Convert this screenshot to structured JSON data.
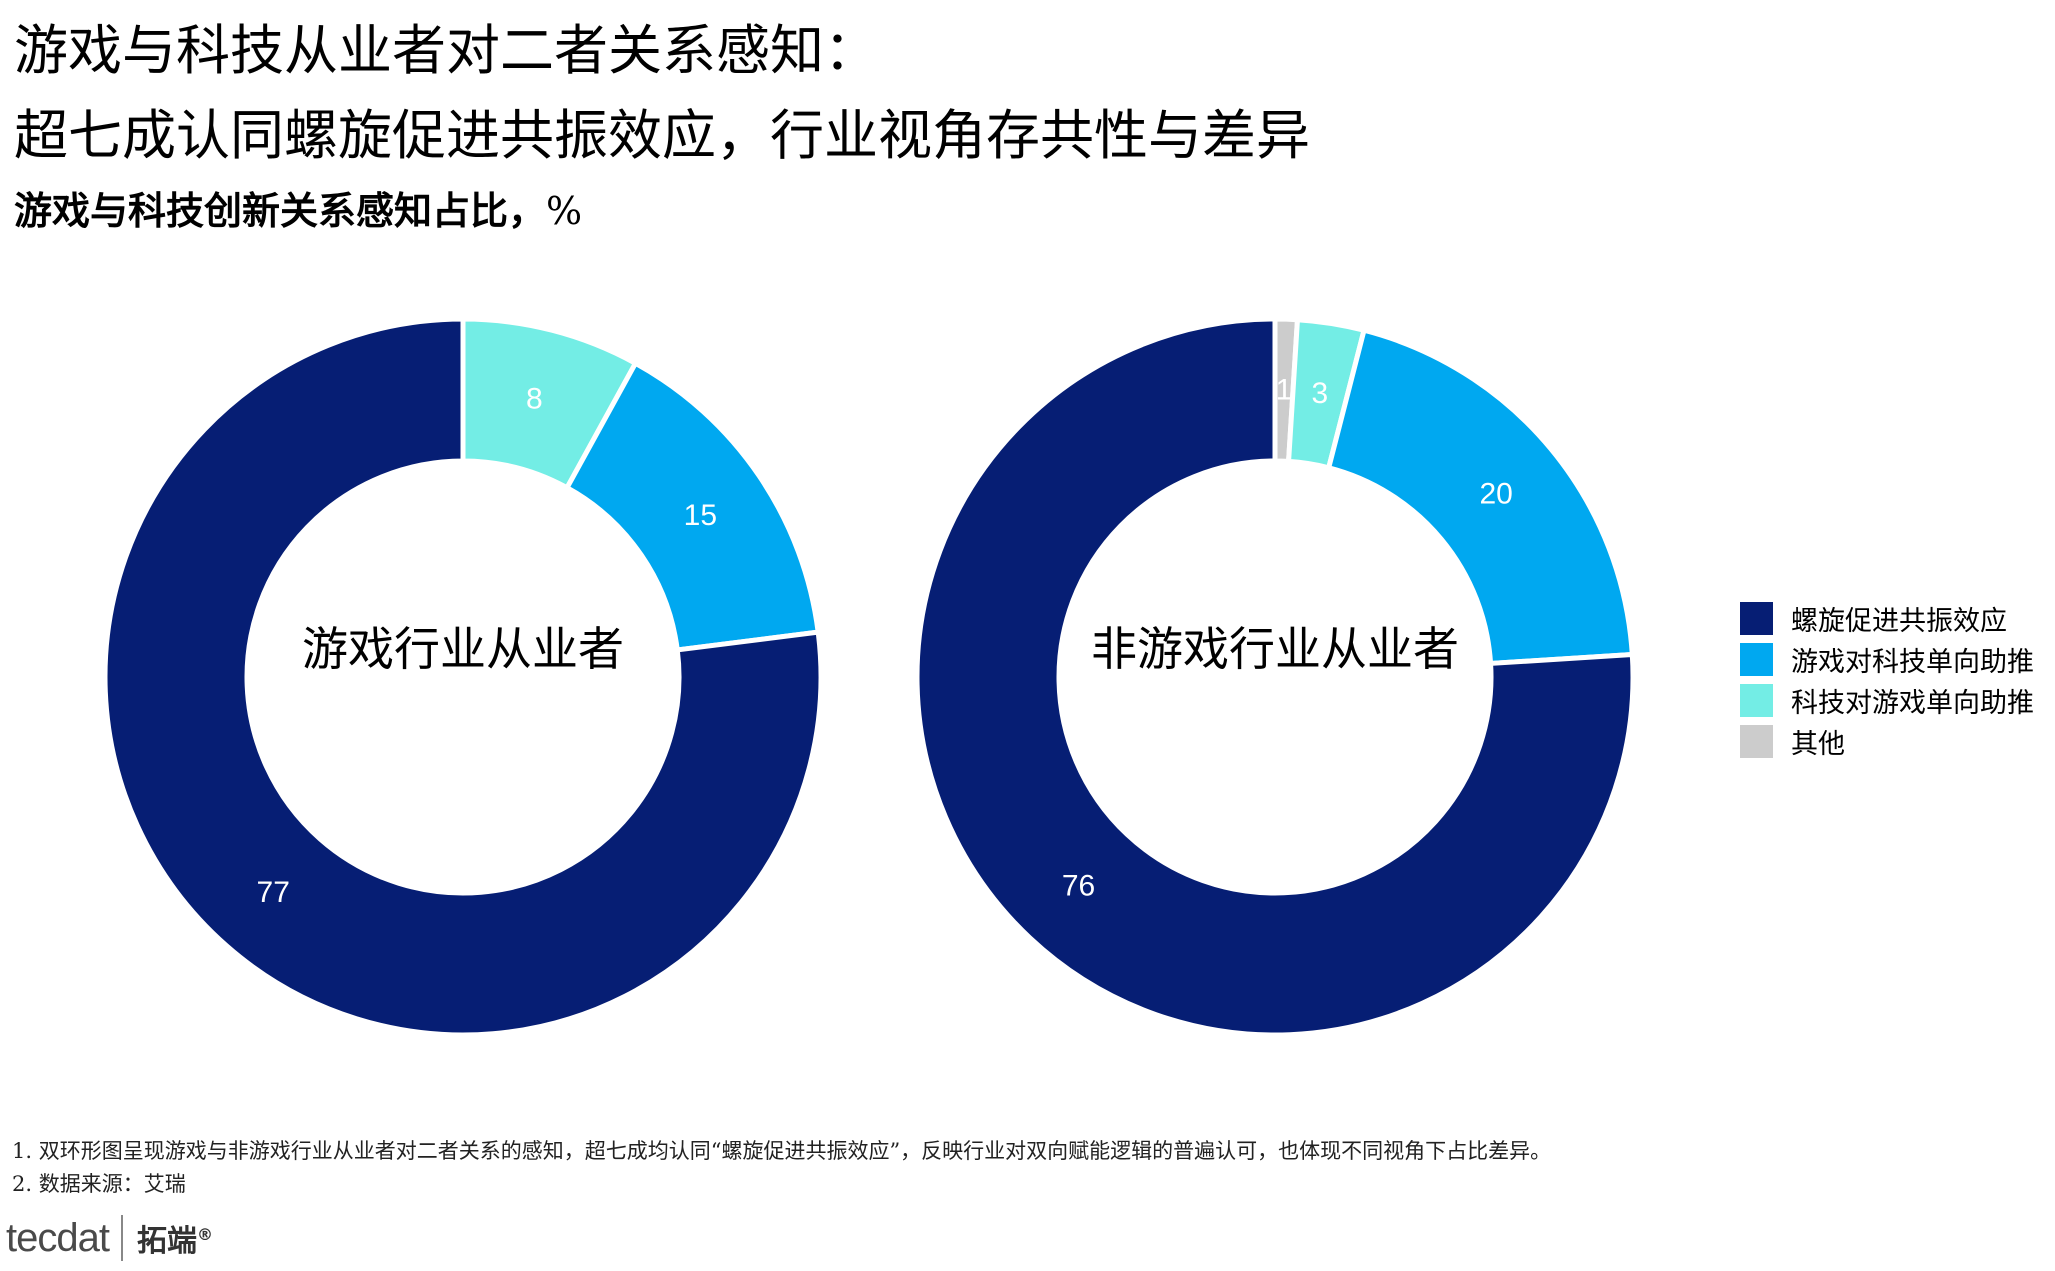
{
  "title_line1": "游戏与科技从业者对二者关系感知：",
  "title_line2": "超七成认同螺旋促进共振效应，行业视角存共性与差异",
  "subtitle": "游戏与科技创新关系感知占比，",
  "subtitle_unit": "%",
  "chart_data": [
    {
      "type": "donut",
      "center_label": "游戏行业从业者",
      "categories": [
        "其他",
        "科技对游戏单向助推",
        "游戏对科技单向助推",
        "螺旋促进共振效应"
      ],
      "values": [
        0,
        8,
        15,
        77
      ],
      "colors": [
        "#cccccc",
        "#73ede5",
        "#00a8f0",
        "#061e74"
      ]
    },
    {
      "type": "donut",
      "center_label": "非游戏行业从业者",
      "categories": [
        "其他",
        "科技对游戏单向助推",
        "游戏对科技单向助推",
        "螺旋促进共振效应"
      ],
      "values": [
        1,
        3,
        20,
        76
      ],
      "colors": [
        "#cccccc",
        "#73ede5",
        "#00a8f0",
        "#061e74"
      ]
    }
  ],
  "legend": [
    {
      "label": "螺旋促进共振效应",
      "color": "#061e74"
    },
    {
      "label": "游戏对科技单向助推",
      "color": "#00a8f0"
    },
    {
      "label": "科技对游戏单向助推",
      "color": "#73ede5"
    },
    {
      "label": "其他",
      "color": "#cccccc"
    }
  ],
  "notes": {
    "line1": "1. 双环形图呈现游戏与非游戏行业从业者对二者关系的感知，超七成均认同“螺旋促进共振效应”，反映行业对双向赋能逻辑的普遍认可，也体现不同视角下占比差异。",
    "line2": "2. 数据来源：艾瑞"
  },
  "logo": {
    "brand": "tecdat",
    "cn": "拓端",
    "reg": "®"
  }
}
